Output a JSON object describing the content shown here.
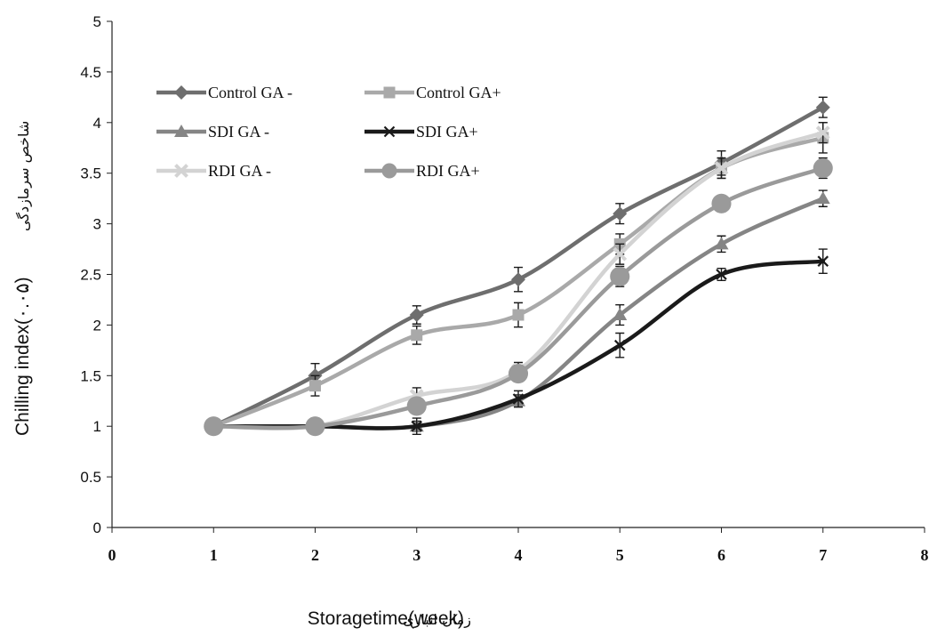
{
  "chart_data": {
    "type": "line",
    "xlabel": "Storagetime(week)",
    "xlabel_fa": "زمان انباری",
    "ylabel": "Chilling index(۰.۰۵)",
    "ylabel_fa": "شاخص سرمازدگی",
    "xlim": [
      0,
      8
    ],
    "ylim": [
      0,
      5
    ],
    "x_ticks": [
      "0",
      "1",
      "2",
      "3",
      "4",
      "5",
      "6",
      "7",
      "8"
    ],
    "y_ticks": [
      "0",
      "0.5",
      "1",
      "1.5",
      "2",
      "2.5",
      "3",
      "3.5",
      "4",
      "4.5",
      "5"
    ],
    "grid": false,
    "legend_position": "top-left",
    "x": [
      1,
      2,
      3,
      4,
      5,
      6,
      7
    ],
    "series": [
      {
        "name": "Control GA -",
        "color": "#6e6e6e",
        "marker": "diamond",
        "values": [
          1.0,
          1.5,
          2.1,
          2.45,
          3.1,
          3.6,
          4.15
        ],
        "errors": [
          0.04,
          0.12,
          0.09,
          0.12,
          0.1,
          0.12,
          0.1
        ]
      },
      {
        "name": "Control GA+",
        "color": "#a9a9a9",
        "marker": "square",
        "values": [
          1.0,
          1.4,
          1.9,
          2.1,
          2.8,
          3.55,
          3.85
        ],
        "errors": [
          0.04,
          0.1,
          0.09,
          0.12,
          0.1,
          0.1,
          0.15
        ]
      },
      {
        "name": "SDI GA -",
        "color": "#858585",
        "marker": "triangle",
        "values": [
          1.0,
          1.0,
          1.0,
          1.25,
          2.1,
          2.8,
          3.25
        ],
        "errors": [
          0.03,
          0.05,
          0.05,
          0.06,
          0.1,
          0.08,
          0.08
        ]
      },
      {
        "name": "SDI GA+",
        "color": "#1a1a1a",
        "marker": "x",
        "values": [
          1.0,
          1.0,
          1.0,
          1.27,
          1.8,
          2.5,
          2.63
        ],
        "errors": [
          0.03,
          0.08,
          0.08,
          0.08,
          0.12,
          0.06,
          0.12
        ]
      },
      {
        "name": "RDI GA -",
        "color": "#d3d3d3",
        "marker": "cross",
        "values": [
          1.0,
          1.0,
          1.3,
          1.55,
          2.7,
          3.55,
          3.9
        ],
        "errors": [
          0.03,
          0.05,
          0.08,
          0.08,
          0.1,
          0.1,
          0.1
        ]
      },
      {
        "name": "RDI GA+",
        "color": "#9a9a9a",
        "marker": "circle",
        "values": [
          1.0,
          1.0,
          1.2,
          1.52,
          2.48,
          3.2,
          3.55
        ],
        "errors": [
          0.03,
          0.05,
          0.08,
          0.08,
          0.1,
          0.08,
          0.1
        ]
      }
    ]
  }
}
